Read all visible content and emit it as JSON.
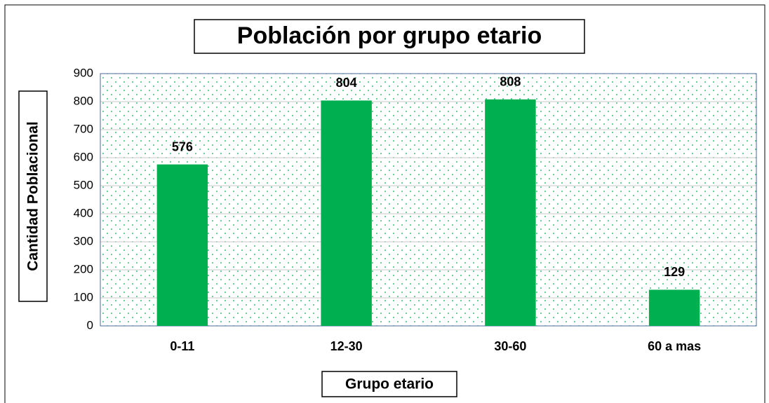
{
  "chart_data": {
    "type": "bar",
    "title": "Población por grupo etario",
    "x_label": "Grupo etario",
    "y_label": "Cantidad Poblacional",
    "categories": [
      "0-11",
      "12-30",
      "30-60",
      "60 a mas"
    ],
    "values": [
      576,
      804,
      808,
      129
    ],
    "color": "#00b050",
    "ylim": [
      0,
      900
    ],
    "yticks": [
      0,
      100,
      200,
      300,
      400,
      500,
      600,
      700,
      800,
      900
    ],
    "grid": true
  }
}
